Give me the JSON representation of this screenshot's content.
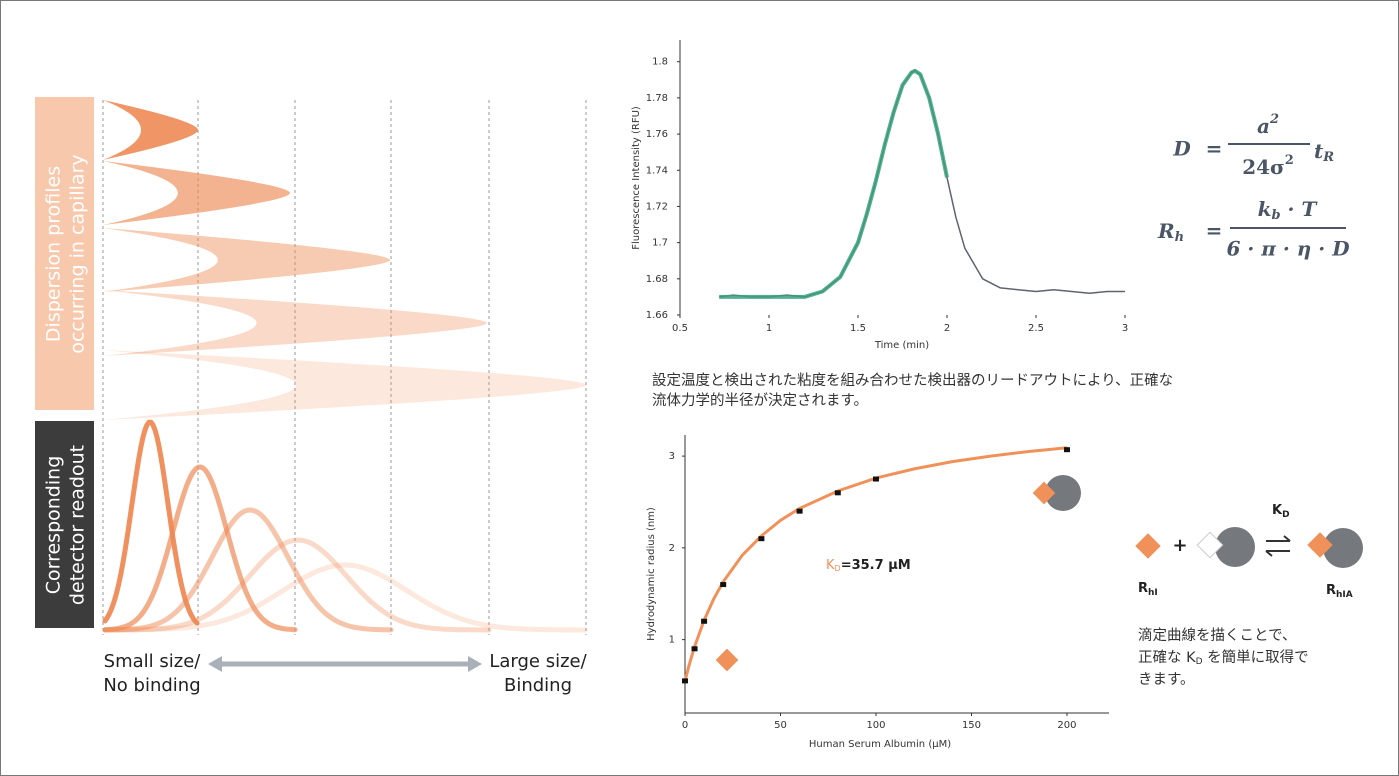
{
  "chart_data": [
    {
      "type": "line",
      "x_label": "Time (min)",
      "y_label": "Fluorescence Intensity (RFU)",
      "xlim": [
        0.5,
        3
      ],
      "xticks": [
        0.5,
        1,
        1.5,
        2,
        2.5,
        3
      ],
      "ylim": [
        1.66,
        1.812
      ],
      "yticks": [
        1.66,
        1.68,
        1.7,
        1.72,
        1.74,
        1.76,
        1.78,
        1.8
      ],
      "x": [
        0.72,
        0.8,
        0.9,
        1.0,
        1.1,
        1.2,
        1.3,
        1.4,
        1.5,
        1.55,
        1.6,
        1.65,
        1.7,
        1.75,
        1.8,
        1.82,
        1.85,
        1.9,
        1.95,
        2.0,
        2.05,
        2.1,
        2.2,
        2.3,
        2.4,
        2.5,
        2.6,
        2.7,
        2.8,
        2.9,
        3.0
      ],
      "series": [
        {
          "color": "#5b6470",
          "values": [
            1.67,
            1.671,
            1.67,
            1.67,
            1.671,
            1.67,
            1.673,
            1.681,
            1.7,
            1.716,
            1.734,
            1.754,
            1.772,
            1.787,
            1.794,
            1.795,
            1.793,
            1.78,
            1.76,
            1.736,
            1.714,
            1.697,
            1.68,
            1.675,
            1.674,
            1.673,
            1.674,
            1.673,
            1.672,
            1.673,
            1.673
          ]
        },
        {
          "color": "#3aa17e",
          "values": [
            1.67,
            1.67,
            1.67,
            1.67,
            1.67,
            1.67,
            1.673,
            1.681,
            1.7,
            1.716,
            1.734,
            1.754,
            1.772,
            1.787,
            1.794,
            1.795,
            1.793,
            1.78,
            1.76,
            1.736,
            null,
            null,
            null,
            null,
            null,
            null,
            null,
            null,
            null,
            null,
            null
          ]
        }
      ]
    },
    {
      "type": "scatter",
      "x_label": "Human Serum Albumin (µM)",
      "y_label": "Hydrodynamic radius (nm)",
      "xlim": [
        0,
        222
      ],
      "xticks": [
        0,
        50,
        100,
        150,
        200
      ],
      "ylim": [
        0.2,
        3.23
      ],
      "yticks": [
        1,
        2,
        3
      ],
      "annotation": {
        "symbol": "K",
        "subscript": "D",
        "text": "=35.7 µM"
      },
      "color": "#111111",
      "x": [
        0,
        5,
        10,
        20,
        40,
        60,
        80,
        100,
        200
      ],
      "values": [
        0.55,
        0.9,
        1.2,
        1.6,
        2.1,
        2.4,
        2.6,
        2.75,
        3.07
      ],
      "fit": {
        "color": "#f0915a",
        "x": [
          0,
          2,
          5,
          10,
          15,
          20,
          30,
          40,
          50,
          60,
          80,
          100,
          120,
          140,
          160,
          180,
          200
        ],
        "values": [
          0.55,
          0.71,
          0.92,
          1.21,
          1.44,
          1.63,
          1.92,
          2.13,
          2.3,
          2.43,
          2.62,
          2.76,
          2.86,
          2.94,
          3.0,
          3.05,
          3.09
        ]
      }
    }
  ],
  "left_panel": {
    "dispersion_label": [
      "Dispersion profiles",
      "occurring in capillary"
    ],
    "readout_label": [
      "Corresponding",
      "detector readout"
    ],
    "small": [
      "Small size/",
      "No binding"
    ],
    "large": [
      "Large size/",
      "Binding"
    ]
  },
  "equations": {
    "diffusion": {
      "lhs": "D",
      "eq": "=",
      "num_base": "a",
      "num_sup": "2",
      "den_base": "24σ",
      "den_sup": "2",
      "factor": "t",
      "factor_sub": "R"
    },
    "radius": {
      "lhs": "R",
      "lhs_sub": "h",
      "eq": "=",
      "num_k": "k",
      "num_k_sub": "b",
      "num_rest": " · T",
      "den": "6 · π · η · D"
    }
  },
  "caption_top": [
    "設定温度と検出された粘度を組み合わせた検出器のリードアウトにより、正確な",
    "流体力学的半径が決定されます。"
  ],
  "diagram": {
    "plus": "+",
    "kd": "K",
    "kd_sub": "D",
    "r1": "R",
    "r1_sub": "hI",
    "r2": "R",
    "r2_sub": "hIA"
  },
  "caption_bottom": {
    "line1": "滴定曲線を描くことで、",
    "line2_before": "正確な ",
    "line2_k": "K",
    "line2_sub": "D",
    "line2_after": " を簡単に取得で",
    "line3": "きます。"
  }
}
